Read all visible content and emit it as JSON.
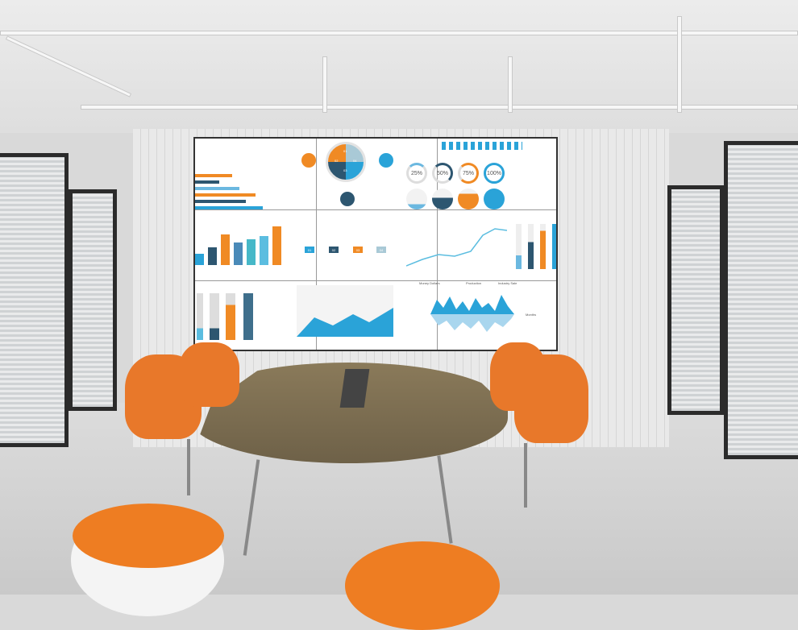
{
  "scene": {
    "colors": {
      "accent_orange": "#f08a24",
      "accent_blue": "#2aa3d8",
      "dark_blue": "#2d5670",
      "wall": "#e6e6e6"
    }
  },
  "screen": {
    "donut_segments": [
      "01",
      "02",
      "03",
      "04"
    ],
    "rings": [
      "25%",
      "50%",
      "75%",
      "100%"
    ],
    "tags": [
      "01",
      "02",
      "03",
      "04"
    ],
    "wave_legend": {
      "y_label": "Money Dollars",
      "series": [
        "Production",
        "Industry Sale"
      ],
      "x_label": "Months"
    }
  }
}
